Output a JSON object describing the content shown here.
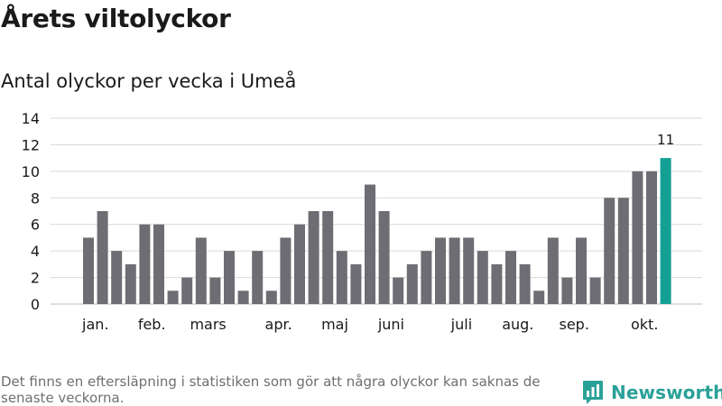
{
  "title": "Årets viltolyckor",
  "subtitle": "Antal olyckor per vecka i Umeå",
  "footnote": "Det finns en eftersläpning i statistiken som gör att några olyckor kan saknas de senaste veckorna.",
  "brand": {
    "name": "Newsworthy",
    "icon": "newsworthy-logo-icon",
    "color": "#2aa198"
  },
  "colors": {
    "bar": "#6e6d73",
    "highlight": "#14a095",
    "grid": "#d9d9d9",
    "text": "#1a1a1a"
  },
  "chart_data": {
    "type": "bar",
    "title": "Antal olyckor per vecka i Umeå",
    "xlabel": "",
    "ylabel": "",
    "ylim": [
      0,
      14
    ],
    "yticks": [
      0,
      2,
      4,
      6,
      8,
      10,
      12,
      14
    ],
    "grid": true,
    "legend": "none",
    "values": [
      5,
      7,
      4,
      3,
      6,
      6,
      1,
      2,
      5,
      2,
      4,
      1,
      4,
      1,
      5,
      6,
      7,
      7,
      4,
      3,
      9,
      7,
      2,
      3,
      4,
      5,
      5,
      5,
      4,
      3,
      4,
      3,
      1,
      5,
      2,
      5,
      2,
      8,
      8,
      10,
      10,
      11
    ],
    "highlight_index": 41,
    "highlight_label": "11",
    "month_labels": [
      {
        "label": "jan.",
        "bar": 0.5
      },
      {
        "label": "feb.",
        "bar": 4.5
      },
      {
        "label": "mars",
        "bar": 8.5
      },
      {
        "label": "apr.",
        "bar": 13.5
      },
      {
        "label": "maj",
        "bar": 17.5
      },
      {
        "label": "juni",
        "bar": 21.5
      },
      {
        "label": "juli",
        "bar": 26.5
      },
      {
        "label": "aug.",
        "bar": 30.5
      },
      {
        "label": "sep.",
        "bar": 34.5
      },
      {
        "label": "okt.",
        "bar": 39.5
      }
    ]
  }
}
